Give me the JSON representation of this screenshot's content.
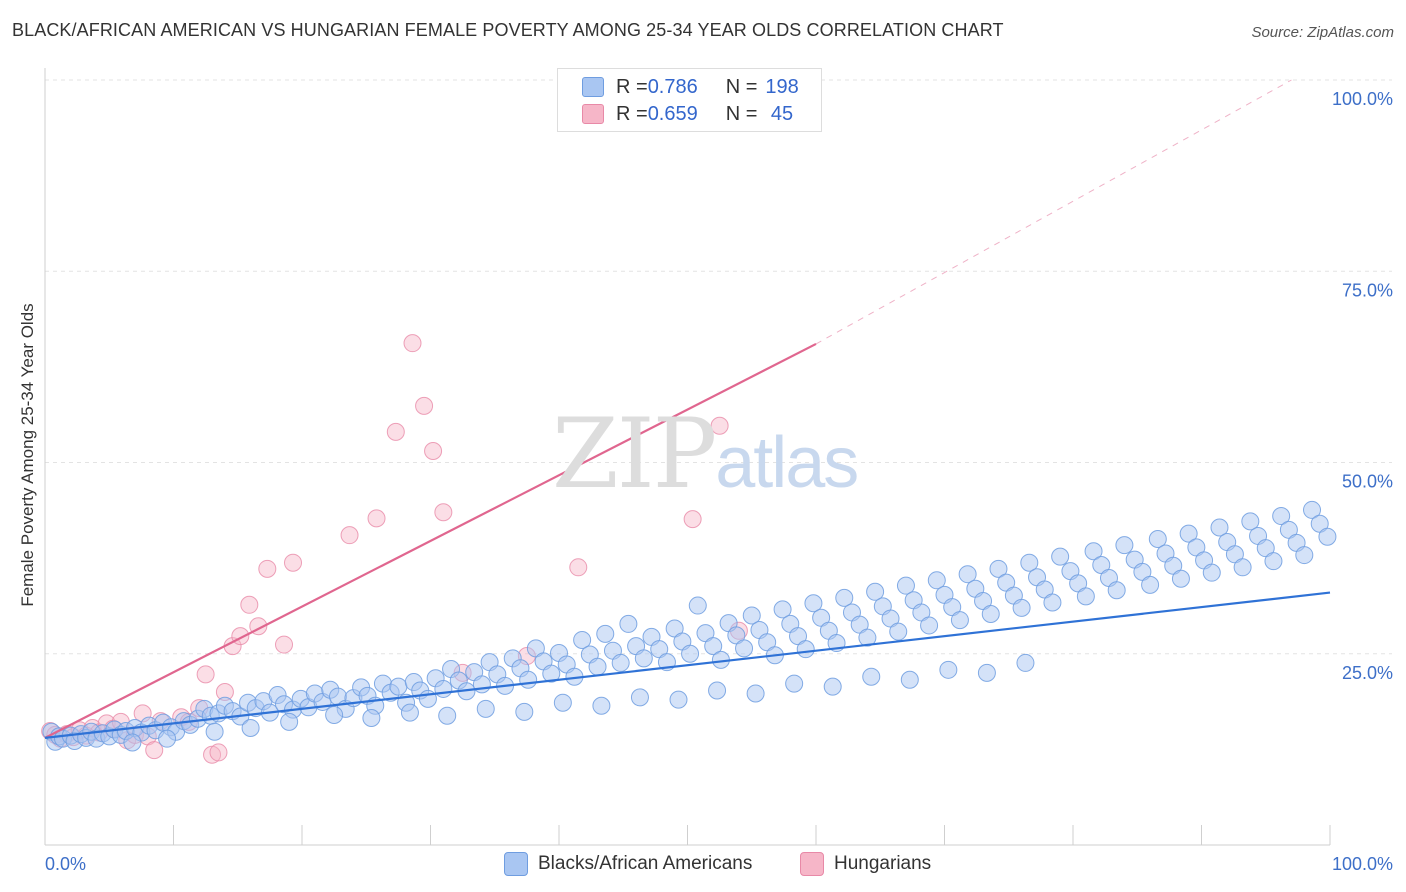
{
  "header": {
    "title": "BLACK/AFRICAN AMERICAN VS HUNGARIAN FEMALE POVERTY AMONG 25-34 YEAR OLDS CORRELATION CHART",
    "source": "Source: ZipAtlas.com"
  },
  "watermark": {
    "zip": "ZIP",
    "atlas": "atlas"
  },
  "legend": {
    "rows": [
      {
        "r_label": "R = ",
        "r_value": "0.786",
        "n_label": "N = ",
        "n_value": "198",
        "color": "#a9c6f2"
      },
      {
        "r_label": "R = ",
        "r_value": "0.659",
        "n_label": "N = ",
        "n_value": " 45",
        "color": "#f6b6c8"
      }
    ]
  },
  "bottom_legend": [
    {
      "label": "Blacks/African Americans",
      "color": "#a9c6f2"
    },
    {
      "label": "Hungarians",
      "color": "#f6b6c8"
    }
  ],
  "chart_data": {
    "type": "scatter",
    "title": "BLACK/AFRICAN AMERICAN VS HUNGARIAN FEMALE POVERTY AMONG 25-34 YEAR OLDS CORRELATION CHART",
    "xlabel": "",
    "ylabel": "Female Poverty Among 25-34 Year Olds",
    "xlim": [
      0,
      100
    ],
    "ylim": [
      0,
      100
    ],
    "x_tick_labels": [
      "0.0%",
      "100.0%"
    ],
    "y_ticks": [
      25,
      50,
      75,
      100
    ],
    "y_tick_labels": [
      "25.0%",
      "50.0%",
      "75.0%",
      "100.0%"
    ],
    "grid": true,
    "colors": {
      "blue_fill": "#a9c6f2",
      "blue_stroke": "#6f9de0",
      "blue_line": "#2f72d6",
      "pink_fill": "#f6b6c8",
      "pink_stroke": "#e889a7",
      "pink_line": "#e0668f",
      "axis_label": "#3d6fc8"
    },
    "series": [
      {
        "name": "Blacks/African Americans",
        "trend": {
          "x0": 0,
          "y0": 14.0,
          "x1": 100,
          "y1": 33.0
        },
        "points": [
          [
            0.5,
            14.8
          ],
          [
            0.8,
            13.5
          ],
          [
            1.1,
            14.2
          ],
          [
            1.4,
            13.9
          ],
          [
            2.0,
            14.3
          ],
          [
            2.3,
            13.6
          ],
          [
            2.8,
            14.5
          ],
          [
            3.2,
            14.0
          ],
          [
            3.6,
            14.8
          ],
          [
            4.0,
            13.9
          ],
          [
            4.5,
            14.6
          ],
          [
            5.0,
            14.2
          ],
          [
            5.4,
            15.1
          ],
          [
            5.9,
            14.4
          ],
          [
            6.3,
            14.9
          ],
          [
            7.0,
            15.3
          ],
          [
            7.5,
            14.7
          ],
          [
            8.1,
            15.6
          ],
          [
            8.6,
            15.0
          ],
          [
            9.2,
            16.0
          ],
          [
            9.8,
            15.4
          ],
          [
            10.2,
            14.8
          ],
          [
            10.8,
            16.2
          ],
          [
            11.3,
            15.7
          ],
          [
            11.9,
            16.5
          ],
          [
            12.4,
            17.8
          ],
          [
            12.9,
            16.9
          ],
          [
            13.5,
            17.2
          ],
          [
            14.0,
            18.2
          ],
          [
            14.6,
            17.5
          ],
          [
            15.2,
            16.8
          ],
          [
            15.8,
            18.6
          ],
          [
            16.4,
            17.9
          ],
          [
            17.0,
            18.8
          ],
          [
            17.5,
            17.3
          ],
          [
            18.1,
            19.6
          ],
          [
            18.6,
            18.4
          ],
          [
            19.3,
            17.7
          ],
          [
            19.9,
            19.1
          ],
          [
            20.5,
            18.0
          ],
          [
            21.0,
            19.8
          ],
          [
            21.6,
            18.7
          ],
          [
            22.2,
            20.3
          ],
          [
            22.8,
            19.4
          ],
          [
            23.4,
            17.8
          ],
          [
            24.0,
            19.2
          ],
          [
            24.6,
            20.6
          ],
          [
            25.1,
            19.5
          ],
          [
            25.7,
            18.2
          ],
          [
            26.3,
            21.1
          ],
          [
            26.9,
            19.9
          ],
          [
            27.5,
            20.7
          ],
          [
            28.1,
            18.6
          ],
          [
            28.7,
            21.3
          ],
          [
            29.2,
            20.2
          ],
          [
            29.8,
            19.1
          ],
          [
            30.4,
            21.8
          ],
          [
            31.0,
            20.4
          ],
          [
            31.6,
            23.0
          ],
          [
            32.2,
            21.5
          ],
          [
            32.8,
            20.1
          ],
          [
            33.4,
            22.6
          ],
          [
            34.0,
            21.0
          ],
          [
            34.6,
            23.9
          ],
          [
            35.2,
            22.3
          ],
          [
            35.8,
            20.8
          ],
          [
            36.4,
            24.4
          ],
          [
            37.0,
            23.1
          ],
          [
            37.6,
            21.6
          ],
          [
            38.2,
            25.7
          ],
          [
            38.8,
            24.0
          ],
          [
            39.4,
            22.4
          ],
          [
            40.0,
            25.1
          ],
          [
            40.6,
            23.6
          ],
          [
            41.2,
            22.0
          ],
          [
            41.8,
            26.8
          ],
          [
            42.4,
            24.9
          ],
          [
            43.0,
            23.3
          ],
          [
            43.6,
            27.6
          ],
          [
            44.2,
            25.4
          ],
          [
            44.8,
            23.8
          ],
          [
            45.4,
            28.9
          ],
          [
            46.0,
            26.0
          ],
          [
            46.6,
            24.4
          ],
          [
            47.2,
            27.2
          ],
          [
            47.8,
            25.6
          ],
          [
            48.4,
            23.9
          ],
          [
            49.0,
            28.3
          ],
          [
            49.6,
            26.6
          ],
          [
            50.2,
            25.0
          ],
          [
            50.8,
            31.3
          ],
          [
            51.4,
            27.7
          ],
          [
            52.0,
            26.0
          ],
          [
            52.6,
            24.2
          ],
          [
            53.2,
            29.0
          ],
          [
            53.8,
            27.4
          ],
          [
            54.4,
            25.7
          ],
          [
            55.0,
            30.0
          ],
          [
            55.6,
            28.1
          ],
          [
            56.2,
            26.5
          ],
          [
            56.8,
            24.8
          ],
          [
            57.4,
            30.8
          ],
          [
            58.0,
            28.9
          ],
          [
            58.6,
            27.3
          ],
          [
            59.2,
            25.6
          ],
          [
            59.8,
            31.6
          ],
          [
            60.4,
            29.7
          ],
          [
            61.0,
            28.0
          ],
          [
            61.6,
            26.4
          ],
          [
            62.2,
            32.3
          ],
          [
            62.8,
            30.4
          ],
          [
            63.4,
            28.8
          ],
          [
            64.0,
            27.1
          ],
          [
            64.6,
            33.1
          ],
          [
            65.2,
            31.2
          ],
          [
            65.8,
            29.6
          ],
          [
            66.4,
            27.9
          ],
          [
            67.0,
            33.9
          ],
          [
            67.6,
            32.0
          ],
          [
            68.2,
            30.4
          ],
          [
            68.8,
            28.7
          ],
          [
            69.4,
            34.6
          ],
          [
            70.0,
            32.7
          ],
          [
            70.6,
            31.1
          ],
          [
            71.2,
            29.4
          ],
          [
            71.8,
            35.4
          ],
          [
            72.4,
            33.5
          ],
          [
            73.0,
            31.9
          ],
          [
            73.6,
            30.2
          ],
          [
            74.2,
            36.1
          ],
          [
            74.8,
            34.3
          ],
          [
            75.4,
            32.6
          ],
          [
            76.0,
            31.0
          ],
          [
            76.6,
            36.9
          ],
          [
            77.2,
            35.0
          ],
          [
            77.8,
            33.4
          ],
          [
            78.4,
            31.7
          ],
          [
            79.0,
            37.7
          ],
          [
            79.8,
            35.8
          ],
          [
            80.4,
            34.2
          ],
          [
            81.0,
            32.5
          ],
          [
            81.6,
            38.4
          ],
          [
            82.2,
            36.6
          ],
          [
            82.8,
            34.9
          ],
          [
            83.4,
            33.3
          ],
          [
            84.0,
            39.2
          ],
          [
            84.8,
            37.3
          ],
          [
            85.4,
            35.7
          ],
          [
            86.0,
            34.0
          ],
          [
            86.6,
            40.0
          ],
          [
            87.2,
            38.1
          ],
          [
            87.8,
            36.5
          ],
          [
            88.4,
            34.8
          ],
          [
            89.0,
            40.7
          ],
          [
            89.6,
            38.9
          ],
          [
            90.2,
            37.2
          ],
          [
            90.8,
            35.6
          ],
          [
            91.4,
            41.5
          ],
          [
            92.0,
            39.6
          ],
          [
            92.6,
            38.0
          ],
          [
            93.2,
            36.3
          ],
          [
            93.8,
            42.3
          ],
          [
            94.4,
            40.4
          ],
          [
            95.0,
            38.8
          ],
          [
            95.6,
            37.1
          ],
          [
            96.2,
            43.0
          ],
          [
            96.8,
            41.2
          ],
          [
            97.4,
            39.5
          ],
          [
            98.0,
            37.9
          ],
          [
            98.6,
            43.8
          ],
          [
            99.2,
            42.0
          ],
          [
            99.8,
            40.3
          ],
          [
            6.8,
            13.4
          ],
          [
            9.5,
            13.9
          ],
          [
            13.2,
            14.8
          ],
          [
            16.0,
            15.3
          ],
          [
            19.0,
            16.1
          ],
          [
            22.5,
            17.0
          ],
          [
            25.4,
            16.6
          ],
          [
            28.4,
            17.3
          ],
          [
            31.3,
            16.9
          ],
          [
            34.3,
            17.8
          ],
          [
            37.3,
            17.4
          ],
          [
            40.3,
            18.6
          ],
          [
            43.3,
            18.2
          ],
          [
            46.3,
            19.3
          ],
          [
            49.3,
            19.0
          ],
          [
            52.3,
            20.2
          ],
          [
            55.3,
            19.8
          ],
          [
            58.3,
            21.1
          ],
          [
            61.3,
            20.7
          ],
          [
            64.3,
            22.0
          ],
          [
            67.3,
            21.6
          ],
          [
            70.3,
            22.9
          ],
          [
            73.3,
            22.5
          ],
          [
            76.3,
            23.8
          ]
        ]
      },
      {
        "name": "Hungarians",
        "trend": {
          "x0": 0,
          "y0": 14.0,
          "x1": 60,
          "y1": 65.5,
          "dash_to_x": 97,
          "dash_to_y": 100
        },
        "points": [
          [
            0.4,
            14.9
          ],
          [
            0.8,
            14.4
          ],
          [
            1.2,
            13.9
          ],
          [
            1.7,
            14.5
          ],
          [
            2.2,
            14.1
          ],
          [
            2.7,
            15.0
          ],
          [
            3.2,
            14.3
          ],
          [
            3.7,
            15.3
          ],
          [
            4.2,
            14.7
          ],
          [
            4.8,
            15.9
          ],
          [
            5.3,
            15.2
          ],
          [
            5.9,
            16.1
          ],
          [
            6.4,
            13.7
          ],
          [
            7.0,
            14.4
          ],
          [
            7.6,
            17.2
          ],
          [
            8.0,
            14.2
          ],
          [
            8.5,
            12.4
          ],
          [
            9.0,
            16.2
          ],
          [
            10.6,
            16.7
          ],
          [
            11.2,
            16.1
          ],
          [
            12.0,
            17.9
          ],
          [
            12.5,
            22.3
          ],
          [
            13.0,
            11.8
          ],
          [
            13.5,
            12.1
          ],
          [
            14.0,
            20.0
          ],
          [
            14.6,
            26.0
          ],
          [
            15.2,
            27.3
          ],
          [
            15.9,
            31.4
          ],
          [
            16.6,
            28.6
          ],
          [
            17.3,
            36.1
          ],
          [
            18.6,
            26.2
          ],
          [
            19.3,
            36.9
          ],
          [
            23.7,
            40.5
          ],
          [
            25.8,
            42.7
          ],
          [
            27.3,
            54.0
          ],
          [
            28.6,
            65.6
          ],
          [
            29.5,
            57.4
          ],
          [
            30.2,
            51.5
          ],
          [
            31.0,
            43.5
          ],
          [
            32.5,
            22.5
          ],
          [
            37.5,
            24.7
          ],
          [
            41.5,
            36.3
          ],
          [
            50.4,
            42.6
          ],
          [
            52.5,
            54.8
          ],
          [
            54.0,
            28.0
          ]
        ]
      }
    ]
  }
}
